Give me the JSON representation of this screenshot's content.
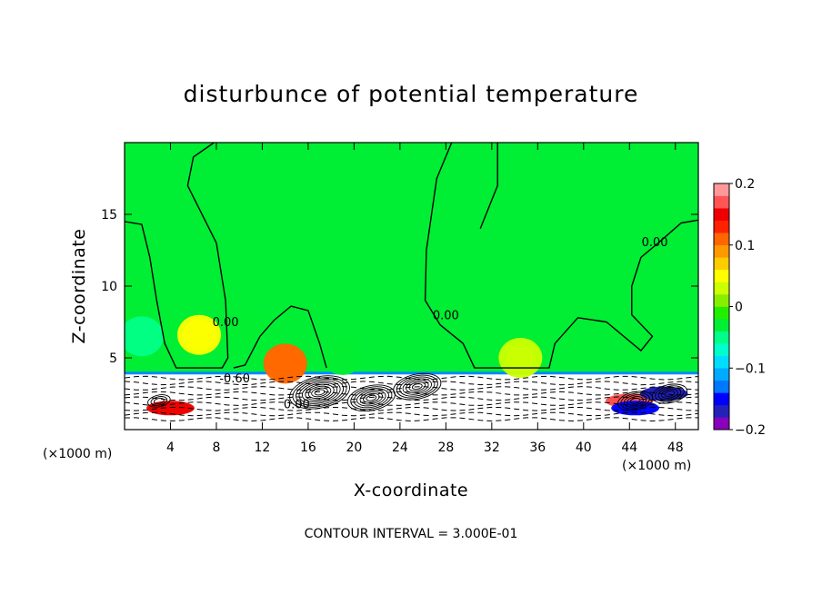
{
  "chart_data": {
    "type": "heatmap",
    "title": "disturbunce of potential temperature",
    "xlabel": "X-coordinate",
    "ylabel": "Z-coordinate",
    "x_unit_left": "(×1000 m)",
    "x_unit_right": "(×1000 m)",
    "xlim": [
      0,
      50
    ],
    "ylim": [
      0,
      20
    ],
    "x_ticks": [
      4,
      8,
      12,
      16,
      20,
      24,
      28,
      32,
      36,
      40,
      44,
      48
    ],
    "y_ticks": [
      5,
      10,
      15
    ],
    "contour_interval_text": "CONTOUR INTERVAL = 3.000E-01",
    "contour_labels": [
      {
        "text": "0.00",
        "x": 8.8,
        "y": 7.2
      },
      {
        "text": "0.00",
        "x": 28.0,
        "y": 7.7
      },
      {
        "text": "0.00",
        "x": 46.2,
        "y": 12.8
      },
      {
        "text": "-0.60",
        "x": 9.6,
        "y": 3.3
      },
      {
        "text": "0.00",
        "x": 15.0,
        "y": 1.5
      }
    ],
    "colorbar": {
      "min": -0.2,
      "max": 0.2,
      "tick_values": [
        0.2,
        0.1,
        0,
        -0.1,
        -0.2
      ],
      "tick_labels": [
        "0.2",
        "0.1",
        "0",
        "−0.1",
        "−0.2"
      ],
      "colors": [
        "#8800bb",
        "#2222bb",
        "#0000ff",
        "#0077ff",
        "#00aaff",
        "#00ddff",
        "#00ffcc",
        "#00ff88",
        "#00ee33",
        "#22ee00",
        "#88ee00",
        "#ccff00",
        "#ffff00",
        "#ffcc00",
        "#ff9900",
        "#ff6600",
        "#ff2200",
        "#ee0000",
        "#ff5555",
        "#ff9999"
      ]
    },
    "background_level_color": "#00ee33",
    "lower_layer_top_z": 4.0,
    "warm_anomalies": [
      {
        "x": 14.0,
        "z": 4.6,
        "value": 0.12
      },
      {
        "x": 6.5,
        "z": 6.6,
        "value": 0.05
      },
      {
        "x": 34.5,
        "z": 5.0,
        "value": 0.03
      },
      {
        "x": 44.0,
        "z": 2.0,
        "value": 0.18
      },
      {
        "x": 4.0,
        "z": 1.5,
        "value": 0.15
      }
    ],
    "cool_anomalies": [
      {
        "x": 1.5,
        "z": 6.5,
        "value": -0.05
      },
      {
        "x": 11.0,
        "z": 7.0,
        "value": -0.03
      },
      {
        "x": 19.0,
        "z": 5.2,
        "value": -0.03
      },
      {
        "x": 44.5,
        "z": 1.5,
        "value": -0.15
      },
      {
        "x": 47.0,
        "z": 2.5,
        "value": -0.18
      }
    ]
  }
}
